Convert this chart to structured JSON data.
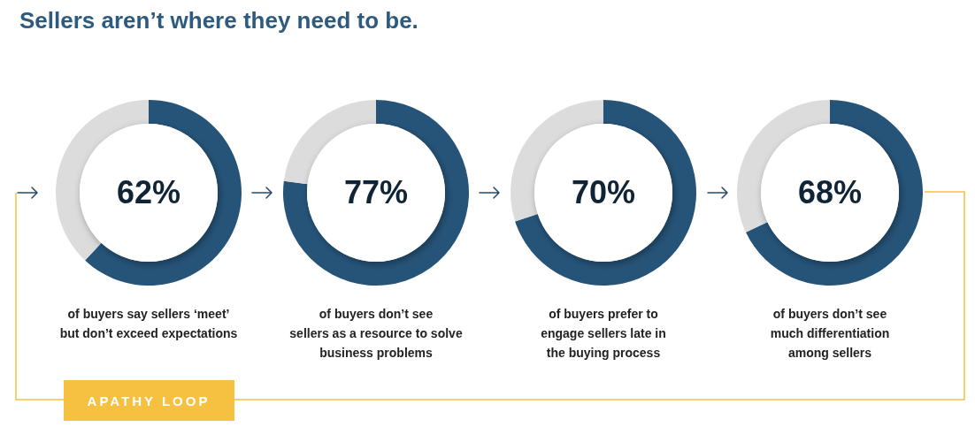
{
  "chart_data": [
    {
      "type": "donut",
      "title": "Sellers aren’t where they need to be.",
      "categories": [
        null,
        null
      ],
      "values": [
        62,
        38
      ],
      "colors": [
        "#265479",
        "#dcdcdc"
      ],
      "value_labels": [
        "62%",
        null
      ],
      "annotations": [
        "of buyers say sellers ‘meet’\nbut don’t exceed expectations",
        "APATHY LOOP"
      ]
    },
    {
      "type": "donut",
      "categories": [
        null,
        null
      ],
      "values": [
        77,
        23
      ],
      "colors": [
        "#265479",
        "#dcdcdc"
      ],
      "value_labels": [
        "77%",
        null
      ],
      "annotations": [
        "of buyers don’t see\nsellers as a resource to solve\nbusiness problems"
      ]
    },
    {
      "type": "donut",
      "categories": [
        null,
        null
      ],
      "values": [
        70,
        30
      ],
      "colors": [
        "#265479",
        "#dcdcdc"
      ],
      "value_labels": [
        "70%",
        null
      ],
      "annotations": [
        "of buyers prefer to\nengage sellers late in\nthe buying process"
      ]
    },
    {
      "type": "donut",
      "categories": [
        null,
        null
      ],
      "values": [
        68,
        32
      ],
      "colors": [
        "#265479",
        "#dcdcdc"
      ],
      "value_labels": [
        "68%",
        null
      ],
      "annotations": [
        "of buyers don’t see\nmuch differentiation\namong sellers"
      ]
    }
  ]
}
